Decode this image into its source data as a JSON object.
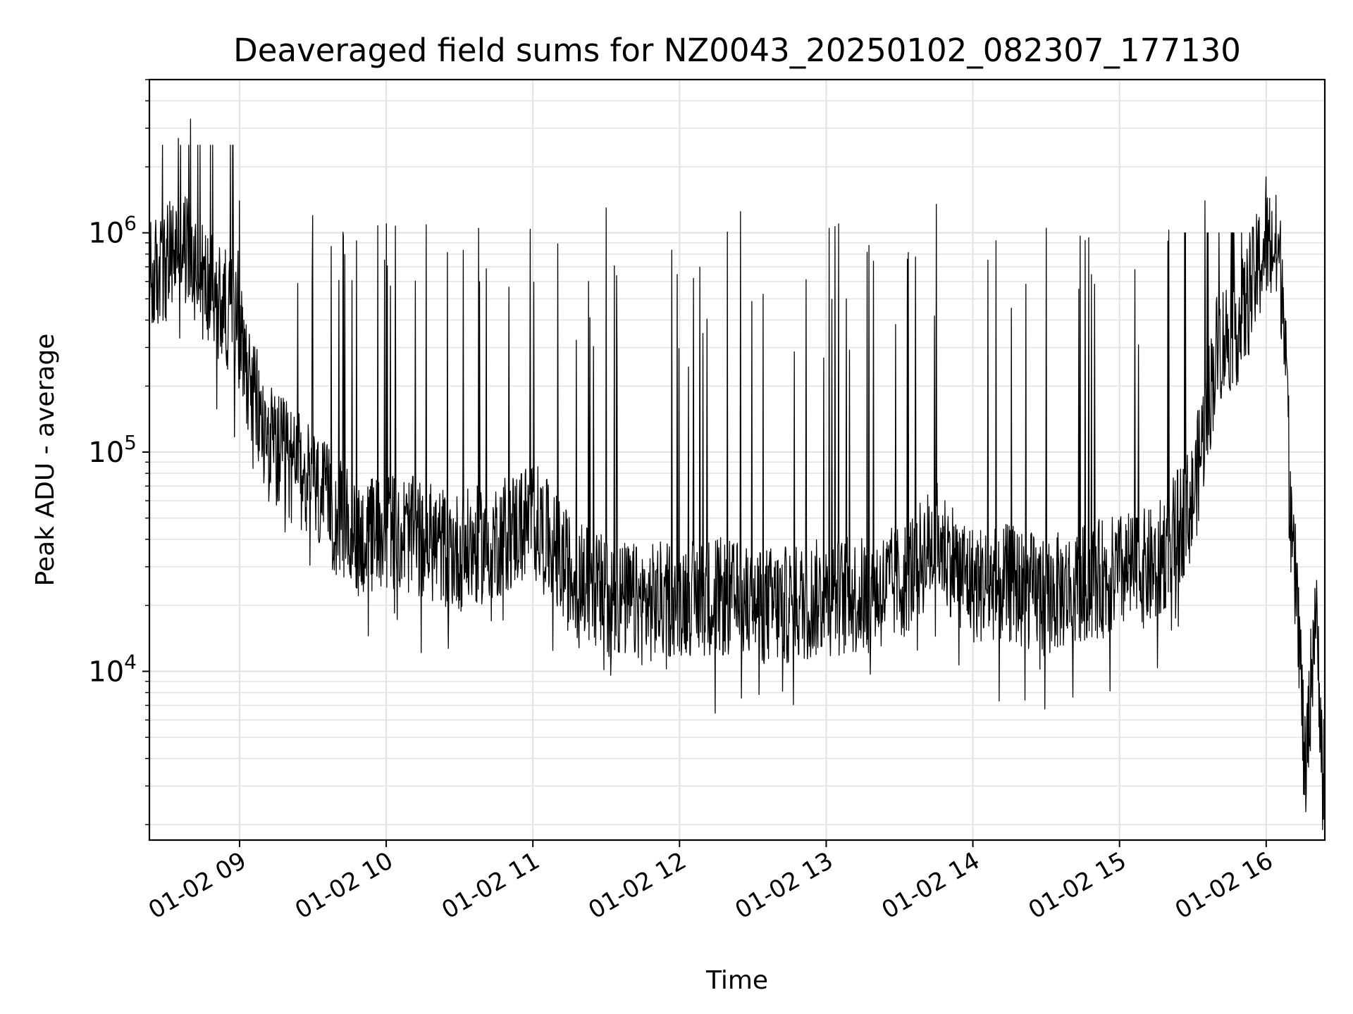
{
  "chart_data": {
    "type": "line",
    "title": "Deaveraged field sums for NZ0043_20250102_082307_177130",
    "xlabel": "Time",
    "ylabel": "Peak ADU - average",
    "y_scale": "log",
    "ylim": [
      1700,
      5000000
    ],
    "xlim": [
      "2025-01-02 08:23:07",
      "2025-01-02 16:23:59"
    ],
    "x_ticks": [
      "01-02 09",
      "01-02 10",
      "01-02 11",
      "01-02 12",
      "01-02 13",
      "01-02 14",
      "01-02 15",
      "01-02 16"
    ],
    "y_ticks": [
      {
        "value": 10000,
        "base": "10",
        "exp": "4"
      },
      {
        "value": 100000,
        "base": "10",
        "exp": "5"
      },
      {
        "value": 1000000,
        "base": "10",
        "exp": "6"
      }
    ],
    "grid": true,
    "line_color": "#000000",
    "series": [
      {
        "name": "",
        "x": [
          "2025-01-02 08:23:07",
          "2025-01-02 08:30",
          "2025-01-02 08:35",
          "2025-01-02 08:40",
          "2025-01-02 08:45",
          "2025-01-02 08:50",
          "2025-01-02 08:55",
          "2025-01-02 09:00",
          "2025-01-02 09:05",
          "2025-01-02 09:10",
          "2025-01-02 09:15",
          "2025-01-02 09:20",
          "2025-01-02 09:30",
          "2025-01-02 09:40",
          "2025-01-02 09:50",
          "2025-01-02 10:00",
          "2025-01-02 10:15",
          "2025-01-02 10:30",
          "2025-01-02 10:45",
          "2025-01-02 11:00",
          "2025-01-02 11:15",
          "2025-01-02 11:30",
          "2025-01-02 11:45",
          "2025-01-02 12:00",
          "2025-01-02 12:15",
          "2025-01-02 12:30",
          "2025-01-02 12:45",
          "2025-01-02 13:00",
          "2025-01-02 13:15",
          "2025-01-02 13:30",
          "2025-01-02 13:45",
          "2025-01-02 14:00",
          "2025-01-02 14:15",
          "2025-01-02 14:30",
          "2025-01-02 14:45",
          "2025-01-02 15:00",
          "2025-01-02 15:15",
          "2025-01-02 15:30",
          "2025-01-02 15:40",
          "2025-01-02 15:50",
          "2025-01-02 16:00",
          "2025-01-02 16:05",
          "2025-01-02 16:08",
          "2025-01-02 16:10",
          "2025-01-02 16:13",
          "2025-01-02 16:16",
          "2025-01-02 16:20",
          "2025-01-02 16:23:59"
        ],
        "values": [
          600000,
          700000,
          900000,
          800000,
          600000,
          500000,
          450000,
          350000,
          200000,
          120000,
          100000,
          90000,
          70000,
          50000,
          40000,
          45000,
          40000,
          35000,
          40000,
          50000,
          28000,
          22000,
          20000,
          22000,
          22000,
          20000,
          20000,
          22000,
          22000,
          25000,
          40000,
          25000,
          25000,
          22000,
          25000,
          28000,
          30000,
          60000,
          300000,
          400000,
          900000,
          800000,
          400000,
          40000,
          20000,
          3000,
          20000,
          3000
        ]
      }
    ],
    "peaks": [
      {
        "x": "2025-01-02 08:40",
        "value": 3300000
      },
      {
        "x": "2025-01-02 08:35",
        "value": 2700000
      },
      {
        "x": "2025-01-02 09:00",
        "value": 1400000
      },
      {
        "x": "2025-01-02 09:30",
        "value": 1200000
      },
      {
        "x": "2025-01-02 10:00",
        "value": 1100000
      },
      {
        "x": "2025-01-02 11:30",
        "value": 1300000
      },
      {
        "x": "2025-01-02 12:25",
        "value": 1250000
      },
      {
        "x": "2025-01-02 13:05",
        "value": 1100000
      },
      {
        "x": "2025-01-02 13:45",
        "value": 1350000
      },
      {
        "x": "2025-01-02 14:30",
        "value": 1050000
      },
      {
        "x": "2025-01-02 15:35",
        "value": 1400000
      },
      {
        "x": "2025-01-02 16:00",
        "value": 1800000
      }
    ]
  }
}
